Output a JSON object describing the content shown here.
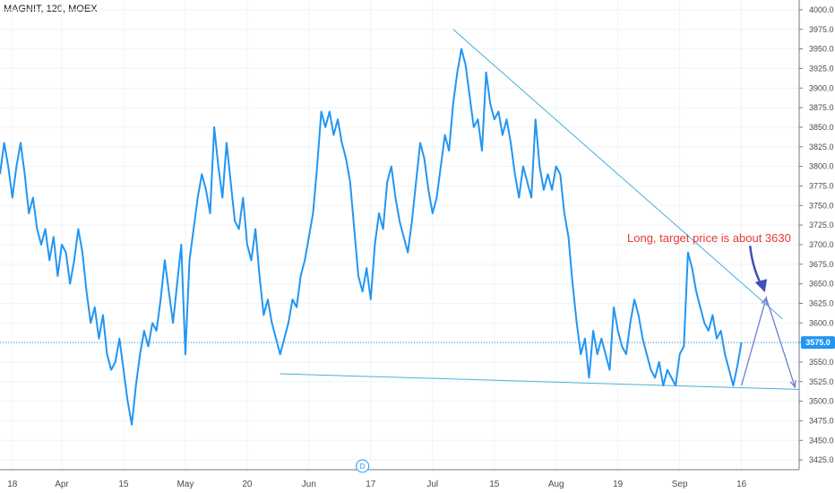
{
  "header": {
    "symbol_label": "MAGNIT, 120, MOEX"
  },
  "chart_data": {
    "type": "line",
    "ylim": [
      3412.5,
      4012.5
    ],
    "y_ticks": [
      4000,
      3975,
      3950,
      3925,
      3900,
      3875,
      3850,
      3825,
      3800,
      3775,
      3750,
      3725,
      3700,
      3675,
      3650,
      3625,
      3600,
      3575,
      3550,
      3525,
      3500,
      3475,
      3450,
      3425
    ],
    "x_ticks": [
      {
        "label": "18",
        "x": 0.3
      },
      {
        "label": "Apr",
        "x": 1.5
      },
      {
        "label": "15",
        "x": 3.0
      },
      {
        "label": "May",
        "x": 4.5
      },
      {
        "label": "20",
        "x": 6.0
      },
      {
        "label": "Jun",
        "x": 7.5
      },
      {
        "label": "17",
        "x": 9.0
      },
      {
        "label": "Jul",
        "x": 10.5
      },
      {
        "label": "15",
        "x": 12.0
      },
      {
        "label": "Aug",
        "x": 13.5
      },
      {
        "label": "19",
        "x": 15.0
      },
      {
        "label": "Sep",
        "x": 16.5
      },
      {
        "label": "16",
        "x": 18.0
      }
    ],
    "xlim": [
      0,
      19.4
    ],
    "last_price": {
      "value": 3575.0,
      "label": "3575.0"
    },
    "annotation": {
      "text": "Long, target price is about 3630"
    },
    "event_badge": {
      "text": "D",
      "x": 8.8
    },
    "series": [
      {
        "color": "#2196f3",
        "points": [
          [
            0.0,
            3790
          ],
          [
            0.1,
            3830
          ],
          [
            0.2,
            3800
          ],
          [
            0.3,
            3760
          ],
          [
            0.4,
            3800
          ],
          [
            0.5,
            3830
          ],
          [
            0.6,
            3790
          ],
          [
            0.7,
            3740
          ],
          [
            0.8,
            3760
          ],
          [
            0.9,
            3720
          ],
          [
            1.0,
            3700
          ],
          [
            1.1,
            3720
          ],
          [
            1.2,
            3680
          ],
          [
            1.3,
            3710
          ],
          [
            1.4,
            3660
          ],
          [
            1.5,
            3700
          ],
          [
            1.6,
            3690
          ],
          [
            1.7,
            3650
          ],
          [
            1.8,
            3680
          ],
          [
            1.9,
            3720
          ],
          [
            2.0,
            3690
          ],
          [
            2.1,
            3640
          ],
          [
            2.2,
            3600
          ],
          [
            2.3,
            3620
          ],
          [
            2.4,
            3580
          ],
          [
            2.5,
            3610
          ],
          [
            2.6,
            3560
          ],
          [
            2.7,
            3540
          ],
          [
            2.8,
            3550
          ],
          [
            2.9,
            3580
          ],
          [
            3.0,
            3540
          ],
          [
            3.1,
            3500
          ],
          [
            3.2,
            3470
          ],
          [
            3.3,
            3520
          ],
          [
            3.4,
            3560
          ],
          [
            3.5,
            3590
          ],
          [
            3.6,
            3570
          ],
          [
            3.7,
            3600
          ],
          [
            3.8,
            3590
          ],
          [
            3.9,
            3630
          ],
          [
            4.0,
            3680
          ],
          [
            4.1,
            3640
          ],
          [
            4.2,
            3600
          ],
          [
            4.3,
            3650
          ],
          [
            4.4,
            3700
          ],
          [
            4.5,
            3560
          ],
          [
            4.6,
            3680
          ],
          [
            4.7,
            3720
          ],
          [
            4.8,
            3760
          ],
          [
            4.9,
            3790
          ],
          [
            5.0,
            3770
          ],
          [
            5.1,
            3740
          ],
          [
            5.2,
            3850
          ],
          [
            5.3,
            3800
          ],
          [
            5.4,
            3760
          ],
          [
            5.5,
            3830
          ],
          [
            5.6,
            3780
          ],
          [
            5.7,
            3730
          ],
          [
            5.8,
            3720
          ],
          [
            5.9,
            3760
          ],
          [
            6.0,
            3700
          ],
          [
            6.1,
            3680
          ],
          [
            6.2,
            3720
          ],
          [
            6.3,
            3660
          ],
          [
            6.4,
            3610
          ],
          [
            6.5,
            3630
          ],
          [
            6.6,
            3600
          ],
          [
            6.7,
            3580
          ],
          [
            6.8,
            3560
          ],
          [
            6.9,
            3580
          ],
          [
            7.0,
            3600
          ],
          [
            7.1,
            3630
          ],
          [
            7.2,
            3620
          ],
          [
            7.3,
            3660
          ],
          [
            7.4,
            3680
          ],
          [
            7.5,
            3710
          ],
          [
            7.6,
            3740
          ],
          [
            7.7,
            3800
          ],
          [
            7.8,
            3870
          ],
          [
            7.9,
            3850
          ],
          [
            8.0,
            3870
          ],
          [
            8.1,
            3840
          ],
          [
            8.2,
            3860
          ],
          [
            8.3,
            3830
          ],
          [
            8.4,
            3810
          ],
          [
            8.5,
            3780
          ],
          [
            8.6,
            3720
          ],
          [
            8.7,
            3660
          ],
          [
            8.8,
            3640
          ],
          [
            8.9,
            3670
          ],
          [
            9.0,
            3630
          ],
          [
            9.1,
            3700
          ],
          [
            9.2,
            3740
          ],
          [
            9.3,
            3720
          ],
          [
            9.4,
            3780
          ],
          [
            9.5,
            3800
          ],
          [
            9.6,
            3760
          ],
          [
            9.7,
            3730
          ],
          [
            9.8,
            3710
          ],
          [
            9.9,
            3690
          ],
          [
            10.0,
            3730
          ],
          [
            10.1,
            3780
          ],
          [
            10.2,
            3830
          ],
          [
            10.3,
            3810
          ],
          [
            10.4,
            3770
          ],
          [
            10.5,
            3740
          ],
          [
            10.6,
            3760
          ],
          [
            10.7,
            3800
          ],
          [
            10.8,
            3840
          ],
          [
            10.9,
            3820
          ],
          [
            11.0,
            3880
          ],
          [
            11.1,
            3920
          ],
          [
            11.2,
            3950
          ],
          [
            11.3,
            3930
          ],
          [
            11.4,
            3890
          ],
          [
            11.5,
            3850
          ],
          [
            11.6,
            3860
          ],
          [
            11.7,
            3820
          ],
          [
            11.8,
            3920
          ],
          [
            11.9,
            3880
          ],
          [
            12.0,
            3860
          ],
          [
            12.1,
            3870
          ],
          [
            12.2,
            3840
          ],
          [
            12.3,
            3860
          ],
          [
            12.4,
            3830
          ],
          [
            12.5,
            3790
          ],
          [
            12.6,
            3760
          ],
          [
            12.7,
            3800
          ],
          [
            12.8,
            3780
          ],
          [
            12.9,
            3760
          ],
          [
            13.0,
            3860
          ],
          [
            13.1,
            3800
          ],
          [
            13.2,
            3770
          ],
          [
            13.3,
            3790
          ],
          [
            13.4,
            3770
          ],
          [
            13.5,
            3800
          ],
          [
            13.6,
            3790
          ],
          [
            13.7,
            3740
          ],
          [
            13.8,
            3710
          ],
          [
            13.9,
            3650
          ],
          [
            14.0,
            3600
          ],
          [
            14.1,
            3560
          ],
          [
            14.2,
            3580
          ],
          [
            14.3,
            3530
          ],
          [
            14.4,
            3590
          ],
          [
            14.5,
            3560
          ],
          [
            14.6,
            3580
          ],
          [
            14.7,
            3560
          ],
          [
            14.8,
            3540
          ],
          [
            14.9,
            3620
          ],
          [
            15.0,
            3590
          ],
          [
            15.1,
            3570
          ],
          [
            15.2,
            3560
          ],
          [
            15.3,
            3600
          ],
          [
            15.4,
            3630
          ],
          [
            15.5,
            3610
          ],
          [
            15.6,
            3580
          ],
          [
            15.7,
            3560
          ],
          [
            15.8,
            3540
          ],
          [
            15.9,
            3530
          ],
          [
            16.0,
            3550
          ],
          [
            16.1,
            3520
          ],
          [
            16.2,
            3540
          ],
          [
            16.3,
            3530
          ],
          [
            16.4,
            3520
          ],
          [
            16.5,
            3560
          ],
          [
            16.6,
            3570
          ],
          [
            16.7,
            3690
          ],
          [
            16.8,
            3670
          ],
          [
            16.9,
            3640
          ],
          [
            17.0,
            3620
          ],
          [
            17.1,
            3600
          ],
          [
            17.2,
            3590
          ],
          [
            17.3,
            3610
          ],
          [
            17.4,
            3580
          ],
          [
            17.5,
            3590
          ],
          [
            17.6,
            3560
          ],
          [
            17.7,
            3540
          ],
          [
            17.8,
            3520
          ],
          [
            17.9,
            3545
          ],
          [
            18.0,
            3575
          ]
        ]
      }
    ],
    "trendlines": [
      {
        "from": [
          11.0,
          3975
        ],
        "to": [
          19.0,
          3605
        ],
        "color": "#4ab0d8"
      },
      {
        "from": [
          6.8,
          3535
        ],
        "to": [
          19.4,
          3515
        ],
        "color": "#4ab0d8"
      }
    ],
    "projection": [
      [
        18.0,
        3520
      ],
      [
        18.6,
        3632
      ],
      [
        19.3,
        3518
      ]
    ]
  }
}
